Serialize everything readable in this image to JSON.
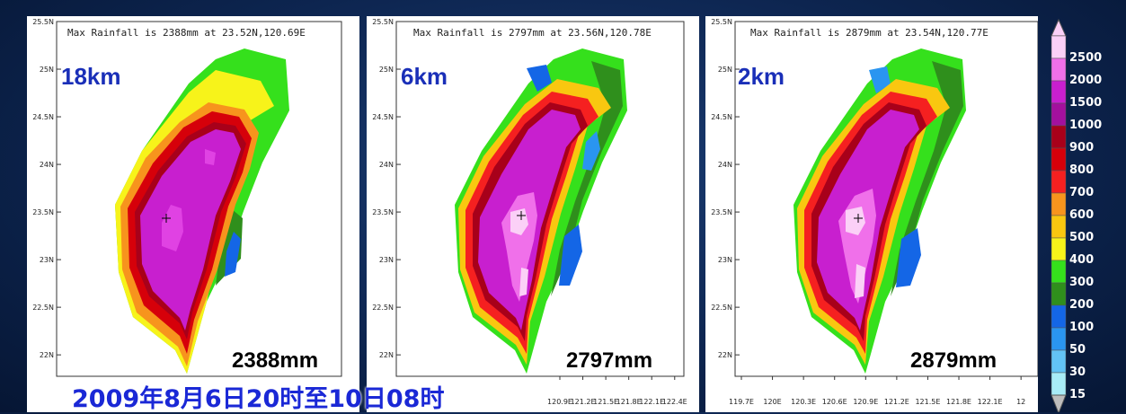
{
  "chart_data": [
    {
      "type": "heatmap",
      "title": "Max Rainfall is 2388mm at   23.52N,120.69E",
      "resolution_label": "18km",
      "total_label": "2388mm",
      "max_point": {
        "lat": 23.52,
        "lon": 120.69,
        "value": 2388
      },
      "y_ticks": [
        "25.5N",
        "25N",
        "24.5N",
        "24N",
        "23.5N",
        "23N",
        "22.5N",
        "22N"
      ],
      "x_ticks": [],
      "ylim": [
        22,
        25.5
      ],
      "xlim": [
        119.7,
        122.4
      ]
    },
    {
      "type": "heatmap",
      "title": "Max Rainfall is 2797mm at   23.56N,120.78E",
      "resolution_label": "6km",
      "total_label": "2797mm",
      "max_point": {
        "lat": 23.56,
        "lon": 120.78,
        "value": 2797
      },
      "y_ticks": [
        "25.5N",
        "25N",
        "24.5N",
        "24N",
        "23.5N",
        "23N",
        "22.5N",
        "22N"
      ],
      "x_ticks": [
        "120.9E",
        "121.2E",
        "121.5E",
        "121.8E",
        "122.1E",
        "122.4E"
      ],
      "ylim": [
        22,
        25.5
      ],
      "xlim": [
        119.7,
        122.4
      ]
    },
    {
      "type": "heatmap",
      "title": "Max Rainfall is 2879mm at   23.54N,120.77E",
      "resolution_label": "2km",
      "total_label": "2879mm",
      "max_point": {
        "lat": 23.54,
        "lon": 120.77,
        "value": 2879
      },
      "y_ticks": [
        "25.5N",
        "25N",
        "24.5N",
        "24N",
        "23.5N",
        "23N",
        "22.5N",
        "22N"
      ],
      "x_ticks": [
        "119.7E",
        "120E",
        "120.3E",
        "120.6E",
        "120.9E",
        "121.2E",
        "121.5E",
        "121.8E",
        "122.1E",
        "12"
      ],
      "ylim": [
        22,
        25.5
      ],
      "xlim": [
        119.7,
        122.4
      ]
    }
  ],
  "caption": "2009年8月6日20时至10日08时",
  "legend": {
    "levels": [
      "2500",
      "2000",
      "1500",
      "1000",
      "900",
      "800",
      "700",
      "600",
      "500",
      "400",
      "300",
      "200",
      "100",
      "50",
      "30",
      "15"
    ],
    "colors": [
      "#fbd0f7",
      "#f070ea",
      "#c81fcf",
      "#a3109e",
      "#a8001a",
      "#d6000a",
      "#f52020",
      "#f7941d",
      "#f9c710",
      "#f7f31a",
      "#35e01c",
      "#2f8f1c",
      "#1466e6",
      "#2a95f0",
      "#62c3f5",
      "#a8ecf7"
    ]
  }
}
